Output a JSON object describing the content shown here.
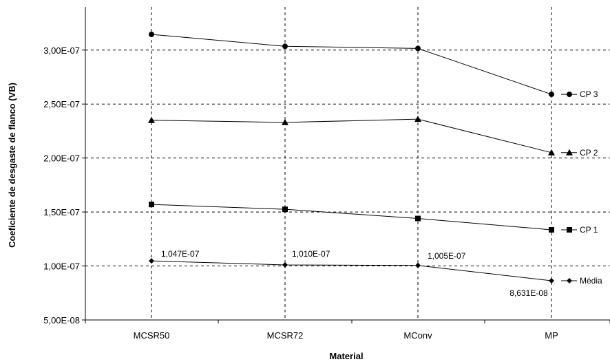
{
  "chart_data": {
    "type": "line",
    "title": "",
    "xlabel": "Material",
    "ylabel": "Coeficiente de desgaste de flanco (VB)",
    "categories": [
      "MCSR50",
      "MCSR72",
      "MConv",
      "MP"
    ],
    "ylim": [
      5e-08,
      3.4e-07
    ],
    "yticks": [
      5e-08,
      1e-07,
      1.5e-07,
      2e-07,
      2.5e-07,
      3e-07
    ],
    "ytick_labels": [
      "5,00E-08",
      "1,00E-07",
      "1,50E-07",
      "2,00E-07",
      "2,50E-07",
      "3,00E-07"
    ],
    "grid": "dashed",
    "legend": "right, at end of each series",
    "series": [
      {
        "name": "CP 3",
        "marker": "circle",
        "values": [
          3.145e-07,
          3.035e-07,
          3.015e-07,
          2.59e-07
        ]
      },
      {
        "name": "CP 2",
        "marker": "triangle",
        "values": [
          2.35e-07,
          2.33e-07,
          2.36e-07,
          2.05e-07
        ]
      },
      {
        "name": "CP 1",
        "marker": "square",
        "values": [
          1.57e-07,
          1.525e-07,
          1.44e-07,
          1.335e-07
        ]
      },
      {
        "name": "Média",
        "marker": "diamond",
        "values": [
          1.047e-07,
          1.01e-07,
          1.005e-07,
          8.631e-08
        ],
        "value_labels": [
          "1,047E-07",
          "1,010E-07",
          "1,005E-07",
          "8,631E-08"
        ]
      }
    ]
  }
}
